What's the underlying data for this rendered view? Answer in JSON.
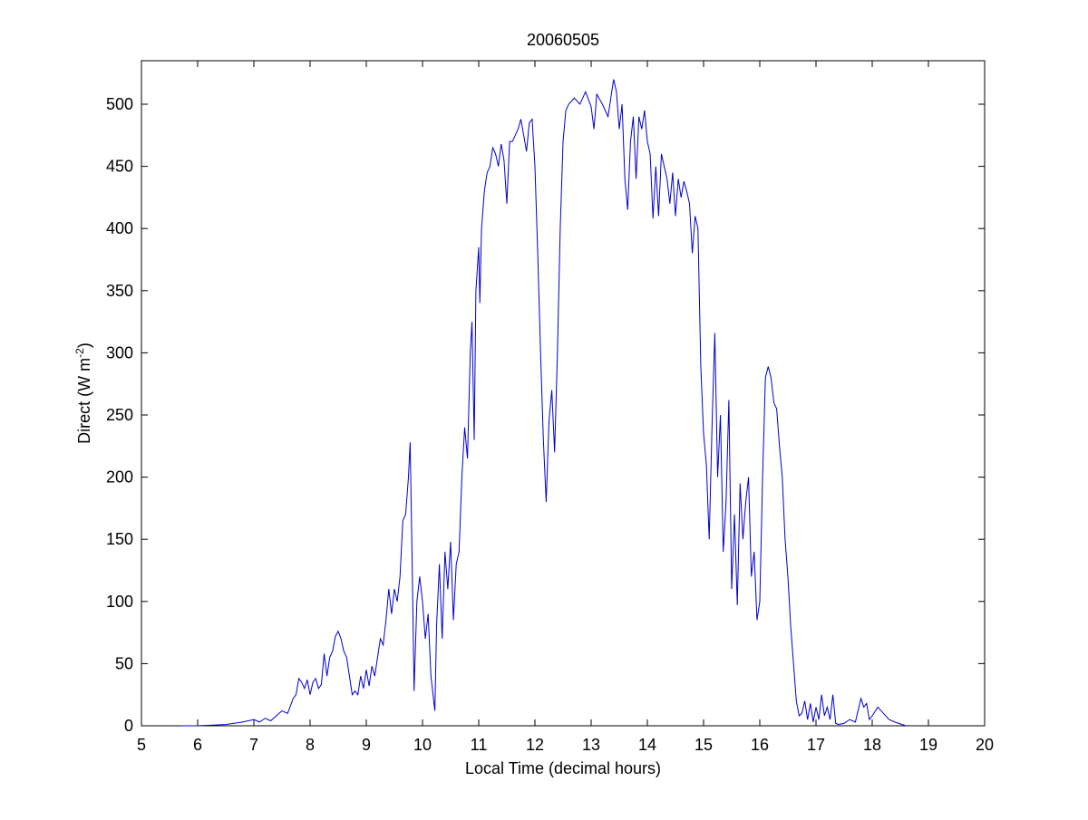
{
  "chart_data": {
    "type": "line",
    "title": "20060505",
    "xlabel": "Local Time (decimal hours)",
    "ylabel": {
      "text": "Direct (W m",
      "superscript": "-2",
      "suffix": ")"
    },
    "xlim": [
      5,
      20
    ],
    "xticks": [
      5,
      6,
      7,
      8,
      9,
      10,
      11,
      12,
      13,
      14,
      15,
      16,
      17,
      18,
      19,
      20
    ],
    "ylim": [
      0,
      535
    ],
    "yticks": [
      0,
      50,
      100,
      150,
      200,
      250,
      300,
      350,
      400,
      450,
      500
    ],
    "series": [
      {
        "name": "Direct",
        "color": "#0000cc",
        "x": [
          5.7,
          6.0,
          6.5,
          6.8,
          7.0,
          7.1,
          7.2,
          7.3,
          7.4,
          7.5,
          7.6,
          7.7,
          7.75,
          7.8,
          7.85,
          7.9,
          7.95,
          8.0,
          8.05,
          8.1,
          8.15,
          8.2,
          8.25,
          8.3,
          8.35,
          8.4,
          8.45,
          8.5,
          8.55,
          8.6,
          8.65,
          8.7,
          8.75,
          8.8,
          8.85,
          8.9,
          8.95,
          9.0,
          9.05,
          9.1,
          9.15,
          9.2,
          9.25,
          9.3,
          9.35,
          9.4,
          9.45,
          9.5,
          9.55,
          9.6,
          9.65,
          9.7,
          9.75,
          9.78,
          9.82,
          9.85,
          9.9,
          9.95,
          10.0,
          10.05,
          10.1,
          10.15,
          10.2,
          10.22,
          10.25,
          10.3,
          10.35,
          10.4,
          10.45,
          10.5,
          10.55,
          10.6,
          10.65,
          10.7,
          10.75,
          10.8,
          10.85,
          10.88,
          10.92,
          10.95,
          11.0,
          11.02,
          11.05,
          11.1,
          11.15,
          11.2,
          11.25,
          11.3,
          11.35,
          11.4,
          11.45,
          11.5,
          11.55,
          11.6,
          11.7,
          11.75,
          11.8,
          11.85,
          11.9,
          11.95,
          12.0,
          12.05,
          12.1,
          12.15,
          12.2,
          12.25,
          12.3,
          12.35,
          12.4,
          12.45,
          12.5,
          12.55,
          12.6,
          12.7,
          12.8,
          12.9,
          13.0,
          13.05,
          13.1,
          13.2,
          13.3,
          13.35,
          13.4,
          13.45,
          13.5,
          13.55,
          13.6,
          13.65,
          13.7,
          13.75,
          13.8,
          13.85,
          13.9,
          13.95,
          14.0,
          14.05,
          14.1,
          14.15,
          14.2,
          14.25,
          14.3,
          14.35,
          14.4,
          14.45,
          14.5,
          14.55,
          14.6,
          14.65,
          14.7,
          14.75,
          14.8,
          14.85,
          14.9,
          14.95,
          15.0,
          15.05,
          15.1,
          15.15,
          15.2,
          15.25,
          15.3,
          15.35,
          15.4,
          15.45,
          15.5,
          15.55,
          15.6,
          15.65,
          15.7,
          15.75,
          15.8,
          15.85,
          15.9,
          15.95,
          16.0,
          16.05,
          16.1,
          16.15,
          16.2,
          16.25,
          16.3,
          16.35,
          16.4,
          16.45,
          16.5,
          16.55,
          16.6,
          16.65,
          16.7,
          16.75,
          16.8,
          16.85,
          16.9,
          16.95,
          17.0,
          17.05,
          17.1,
          17.15,
          17.2,
          17.25,
          17.3,
          17.35,
          17.4,
          17.5,
          17.6,
          17.7,
          17.8,
          17.85,
          17.9,
          17.95,
          18.0,
          18.1,
          18.2,
          18.3,
          18.4,
          18.6
        ],
        "values": [
          0,
          0,
          1,
          3,
          5,
          3,
          6,
          4,
          8,
          12,
          10,
          22,
          25,
          38,
          35,
          30,
          37,
          25,
          35,
          38,
          30,
          33,
          58,
          40,
          55,
          60,
          72,
          76,
          70,
          60,
          55,
          40,
          25,
          28,
          25,
          40,
          30,
          45,
          32,
          48,
          40,
          55,
          70,
          65,
          85,
          110,
          90,
          110,
          100,
          120,
          165,
          170,
          200,
          228,
          120,
          28,
          100,
          120,
          100,
          70,
          90,
          40,
          20,
          12,
          80,
          130,
          70,
          140,
          110,
          148,
          85,
          130,
          140,
          200,
          240,
          215,
          300,
          325,
          230,
          350,
          385,
          340,
          400,
          430,
          445,
          450,
          465,
          460,
          450,
          468,
          455,
          420,
          470,
          470,
          480,
          488,
          475,
          462,
          485,
          488,
          450,
          380,
          300,
          230,
          180,
          245,
          270,
          220,
          300,
          400,
          470,
          495,
          500,
          505,
          500,
          510,
          498,
          480,
          508,
          500,
          490,
          505,
          520,
          510,
          480,
          500,
          440,
          415,
          470,
          490,
          440,
          490,
          480,
          495,
          470,
          460,
          408,
          450,
          410,
          460,
          450,
          440,
          420,
          445,
          410,
          440,
          425,
          438,
          430,
          420,
          380,
          410,
          400,
          290,
          235,
          210,
          150,
          240,
          316,
          200,
          250,
          140,
          180,
          262,
          110,
          170,
          97,
          195,
          150,
          180,
          200,
          120,
          140,
          85,
          100,
          200,
          280,
          289,
          280,
          260,
          255,
          225,
          200,
          150,
          120,
          80,
          50,
          20,
          8,
          10,
          20,
          5,
          18,
          3,
          15,
          5,
          25,
          8,
          15,
          5,
          25,
          2,
          1,
          2,
          5,
          3,
          22,
          15,
          18,
          5,
          8,
          15,
          10,
          5,
          3,
          0
        ]
      }
    ]
  }
}
